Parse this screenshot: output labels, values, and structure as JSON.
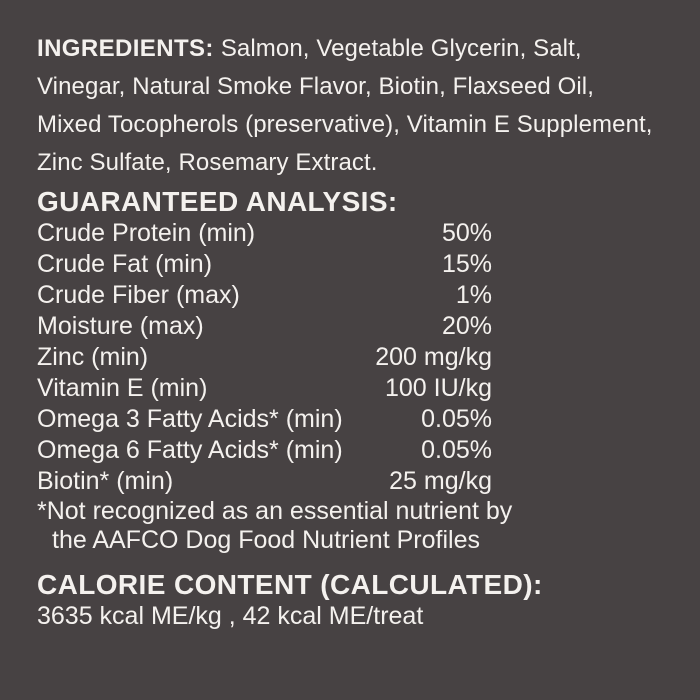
{
  "label": {
    "background_color": "#474243",
    "text_color": "#f4f1ee"
  },
  "ingredients": {
    "heading": "INGREDIENTS:",
    "text": "Salmon, Vegetable Glycerin, Salt,\nVinegar, Natural Smoke Flavor, Biotin, Flaxseed Oil,\nMixed Tocopherols (preservative), Vitamin E Supplement,\nZinc Sulfate, Rosemary Extract."
  },
  "guaranteed_analysis": {
    "heading": "GUARANTEED ANALYSIS:",
    "rows": [
      {
        "label": "Crude Protein (min)",
        "value": "50%"
      },
      {
        "label": "Crude Fat (min)",
        "value": "15%"
      },
      {
        "label": "Crude Fiber (max)",
        "value": "1%"
      },
      {
        "label": "Moisture (max)",
        "value": "20%"
      },
      {
        "label": "Zinc (min)",
        "value": "200 mg/kg"
      },
      {
        "label": "Vitamin E (min)",
        "value": "100 IU/kg"
      },
      {
        "label": "Omega 3 Fatty Acids* (min)",
        "value": "0.05%"
      },
      {
        "label": "Omega 6 Fatty Acids* (min)",
        "value": "0.05%"
      },
      {
        "label": "Biotin* (min)",
        "value": "25 mg/kg"
      }
    ],
    "footnote_lines": [
      "*Not recognized as an essential nutrient by",
      "the AAFCO Dog Food Nutrient Profiles"
    ]
  },
  "calorie_content": {
    "heading": "CALORIE CONTENT (CALCULATED):",
    "text": "3635 kcal ME/kg , 42 kcal ME/treat"
  }
}
